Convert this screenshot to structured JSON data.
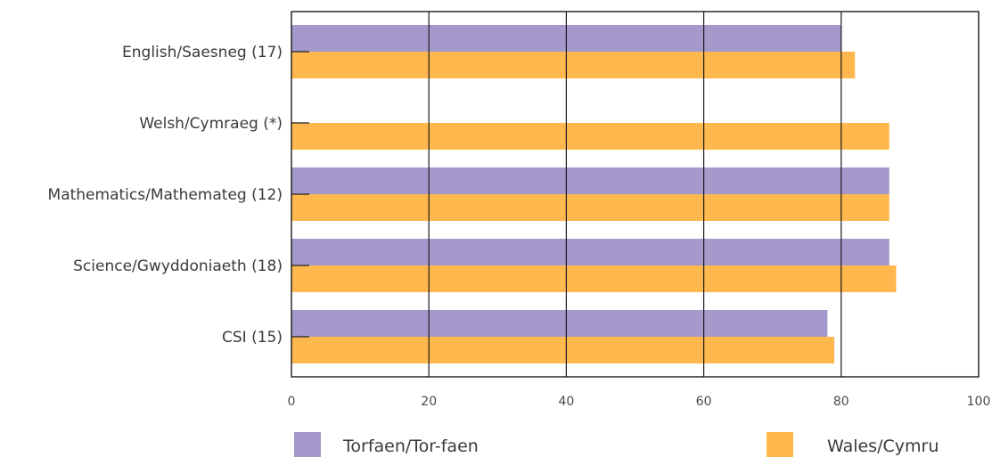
{
  "chart_data": {
    "type": "bar",
    "orientation": "horizontal",
    "categories": [
      "English/Saesneg (17)",
      "Welsh/Cymraeg (*)",
      "Mathematics/Mathemateg (12)",
      "Science/Gwyddoniaeth (18)",
      "CSI (15)"
    ],
    "series": [
      {
        "name": "Torfaen/Tor-faen",
        "color": "#a599cc",
        "values": [
          80,
          null,
          87,
          87,
          78
        ]
      },
      {
        "name": "Wales/Cymru",
        "color": "#ffb84d",
        "values": [
          82,
          87,
          87,
          88,
          79
        ]
      }
    ],
    "xlim": [
      0,
      100
    ],
    "xticks": [
      0,
      20,
      40,
      60,
      80,
      100
    ],
    "grid": "vertical",
    "legend_position": "bottom",
    "title": "",
    "xlabel": "",
    "ylabel": ""
  }
}
